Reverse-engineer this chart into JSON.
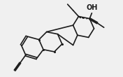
{
  "bg_color": "#f0f0f0",
  "bond_color": "#1a1a1a",
  "bond_lw": 1.2,
  "text_color": "#1a1a1a",
  "oh_label": "OH",
  "oh_fontsize": 7,
  "scale": 1.0
}
